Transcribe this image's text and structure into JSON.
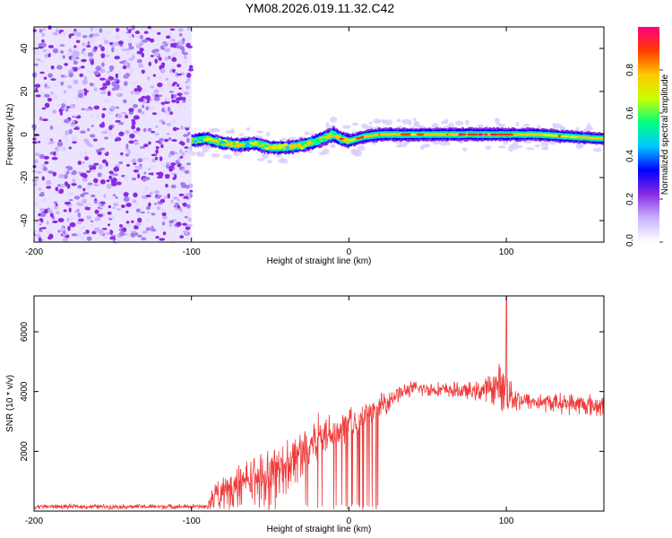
{
  "page": {
    "title": "YM08.2026.019.11.32.C42"
  },
  "chart_data": [
    {
      "type": "heatmap",
      "panel": "top",
      "xlabel": "Height of straight line (km)",
      "ylabel": "Frequency (Hz)",
      "xlim": [
        -200,
        162
      ],
      "ylim": [
        -50,
        50
      ],
      "x_ticks": [
        -200,
        -100,
        0,
        100
      ],
      "y_ticks": [
        -40,
        -20,
        0,
        20,
        40
      ],
      "colorbar": {
        "label": "Normalized spectral amplitude",
        "range": [
          0,
          1
        ],
        "ticks": [
          "0.0",
          "0.2",
          "0.4",
          "0.6",
          "0.8"
        ],
        "colors": [
          "#ffffff",
          "#c9b3ff",
          "#8a2be2",
          "#0000ff",
          "#00c8ff",
          "#00ff80",
          "#c8ff00",
          "#ffc800",
          "#ff3c00",
          "#ff0080"
        ]
      },
      "noise_region_x": [
        -200,
        -100
      ],
      "ridge": {
        "x": [
          -100,
          -90,
          -80,
          -70,
          -60,
          -50,
          -40,
          -30,
          -20,
          -10,
          -5,
          0,
          10,
          20,
          40,
          60,
          80,
          100,
          120,
          140,
          162
        ],
        "y": [
          -3,
          -2,
          -4,
          -5,
          -4,
          -6,
          -6,
          -5,
          -3,
          0,
          -2,
          -3,
          -1,
          0,
          0,
          0,
          0,
          0,
          0,
          -1,
          -2
        ],
        "level": [
          0.45,
          0.45,
          0.45,
          0.5,
          0.45,
          0.45,
          0.45,
          0.5,
          0.6,
          0.75,
          0.7,
          0.65,
          0.7,
          0.75,
          0.7,
          0.7,
          0.75,
          0.7,
          0.65,
          0.6,
          0.55
        ]
      }
    },
    {
      "type": "line",
      "panel": "bottom",
      "xlabel": "Height of straight line (km)",
      "ylabel": "SNR (10 * v/v)",
      "xlim": [
        -200,
        162
      ],
      "ylim": [
        0,
        7200
      ],
      "x_ticks": [
        -200,
        -100,
        0,
        100
      ],
      "y_ticks": [
        2000,
        4000,
        6000
      ],
      "color": "#ef3b3b",
      "envelope": {
        "x": [
          -200,
          -90,
          -86,
          -80,
          -70,
          -60,
          -50,
          -40,
          -30,
          -20,
          -10,
          0,
          10,
          20,
          30,
          40,
          60,
          80,
          90,
          95,
          100,
          105,
          110,
          120,
          140,
          162
        ],
        "mean": [
          150,
          150,
          500,
          700,
          900,
          1200,
          1200,
          1500,
          2000,
          2500,
          2700,
          2900,
          3100,
          3500,
          3900,
          4100,
          4050,
          4000,
          4100,
          4200,
          4100,
          3800,
          3700,
          3650,
          3600,
          3500
        ],
        "spread": [
          80,
          80,
          400,
          500,
          600,
          700,
          800,
          900,
          900,
          800,
          700,
          600,
          550,
          450,
          300,
          250,
          250,
          300,
          500,
          700,
          900,
          500,
          300,
          300,
          350,
          400
        ]
      },
      "peak": {
        "x": 100,
        "y": 7200
      }
    }
  ]
}
